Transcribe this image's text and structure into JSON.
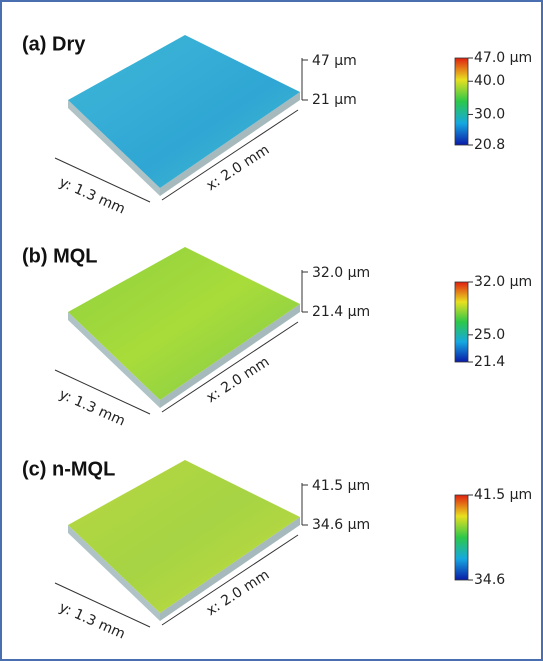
{
  "panels": [
    {
      "label": "(a) Dry",
      "z_top": "47 µm",
      "z_bottom": "21 µm",
      "x_label": "x: 2.0 mm",
      "y_label": "y: 1.3 mm",
      "colorbar": [
        "47.0 µm",
        "40.0",
        "30.0",
        "20.8"
      ]
    },
    {
      "label": "(b) MQL",
      "z_top": "32.0 µm",
      "z_bottom": "21.4 µm",
      "x_label": "x: 2.0 mm",
      "y_label": "y: 1.3 mm",
      "colorbar": [
        "32.0 µm",
        "25.0",
        "21.4"
      ]
    },
    {
      "label": "(c) n-MQL",
      "z_top": "41.5 µm",
      "z_bottom": "34.6 µm",
      "x_label": "x: 2.0 mm",
      "y_label": "y: 1.3 mm",
      "colorbar": [
        "41.5 µm",
        "34.6"
      ]
    }
  ]
}
